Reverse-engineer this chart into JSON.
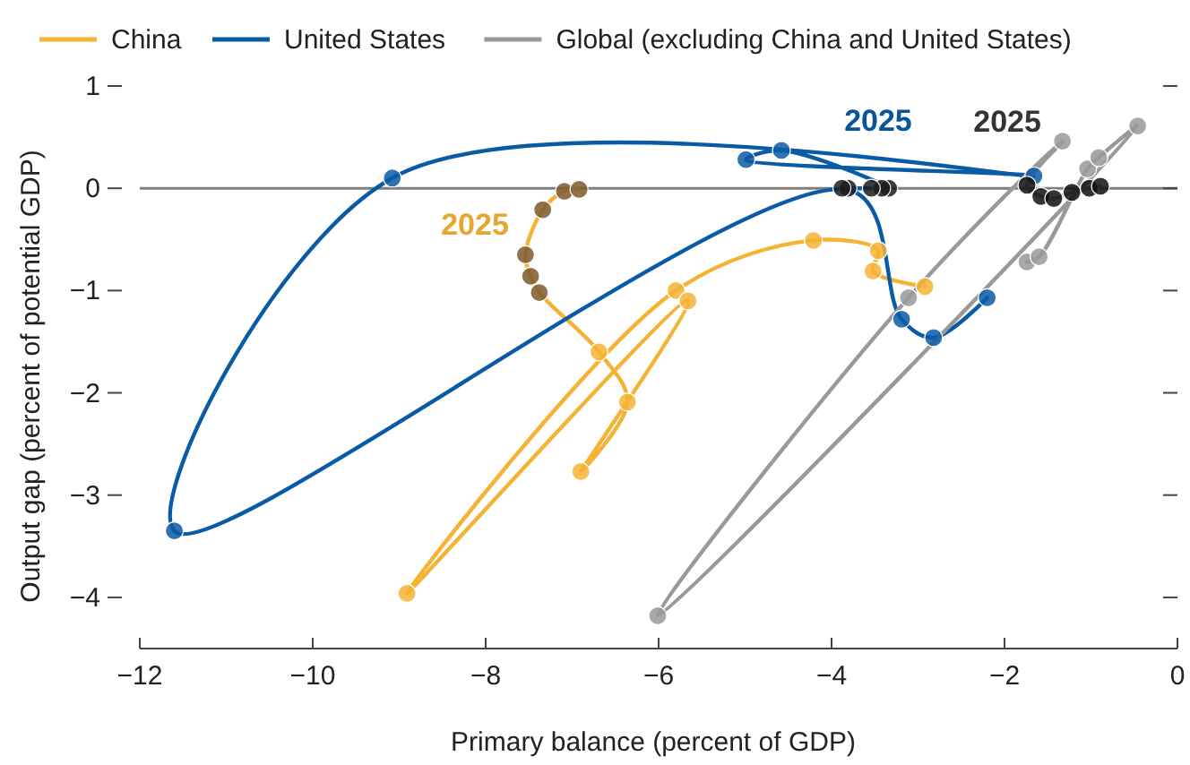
{
  "chart_data": {
    "type": "line",
    "xlabel": "Primary balance (percent of GDP)",
    "ylabel": "Output gap (percent of potential GDP)",
    "xlim": [
      -12,
      0
    ],
    "xticks": [
      -12,
      -10,
      -8,
      -6,
      -4,
      -2,
      0
    ],
    "ylim": [
      -4.5,
      1
    ],
    "yticks": [
      -4,
      -3,
      -2,
      -1,
      0,
      1
    ],
    "grid": false,
    "legend": "top",
    "ref_lines": [
      {
        "axis": "y",
        "value": 0,
        "color": "#7f7f7f"
      }
    ],
    "series": [
      {
        "name": "China",
        "type": "line",
        "marker": "none",
        "color": "#f5b335",
        "x": [
          -2.92,
          -3.52,
          -3.46,
          -4.21,
          -5.8,
          -8.91,
          -5.66,
          -6.9,
          -6.36,
          -6.69,
          -7.38,
          -7.48,
          -7.54,
          -7.34,
          -7.09,
          -6.92
        ],
        "values": [
          -0.96,
          -0.81,
          -0.61,
          -0.51,
          -1.0,
          -3.96,
          -1.1,
          -2.77,
          -2.09,
          -1.6,
          -1.02,
          -0.86,
          -0.65,
          -0.21,
          -0.03,
          -0.01
        ]
      },
      {
        "name": "United States",
        "type": "line",
        "marker": "none",
        "color": "#0a5ba6",
        "x": [
          -2.2,
          -2.82,
          -3.19,
          -3.75,
          -11.6,
          -9.08,
          -1.66,
          -4.99,
          -4.58,
          -3.34,
          -3.42,
          -3.54,
          -3.81,
          -3.88
        ],
        "values": [
          -1.07,
          -1.46,
          -1.28,
          -0.03,
          -3.35,
          0.1,
          0.12,
          0.28,
          0.37,
          0,
          0,
          0,
          0,
          0
        ]
      },
      {
        "name": "Global (excluding China and United States)",
        "type": "line",
        "marker": "none",
        "color": "#999999",
        "x": [
          -1.74,
          -1.6,
          -1.04,
          -0.91,
          -0.46,
          -6.01,
          -3.11,
          -1.33,
          -1.74,
          -1.58,
          -1.43,
          -1.22,
          -1.02,
          -0.89
        ],
        "values": [
          -0.72,
          -0.67,
          0.19,
          0.3,
          0.61,
          -4.18,
          -1.07,
          0.46,
          0.03,
          -0.08,
          -0.1,
          -0.04,
          0,
          0.02
        ]
      },
      {
        "type": "scatter",
        "marker": "circle",
        "color": "#f5b335",
        "x": [
          -2.92,
          -3.52,
          -3.46,
          -4.21,
          -5.8,
          -8.91,
          -5.66,
          -6.9,
          -6.36,
          -6.69
        ],
        "values": [
          -0.96,
          -0.81,
          -0.61,
          -0.51,
          -1.0,
          -3.96,
          -1.1,
          -2.77,
          -2.09,
          -1.6
        ]
      },
      {
        "type": "scatter",
        "marker": "circle",
        "color": "#0a5ba6",
        "x": [
          -2.2,
          -2.82,
          -3.19,
          -11.6,
          -9.08,
          -1.66,
          -4.99,
          -4.58
        ],
        "values": [
          -1.07,
          -1.46,
          -1.28,
          -3.35,
          0.1,
          0.12,
          0.28,
          0.37
        ]
      },
      {
        "type": "scatter",
        "marker": "circle",
        "color": "#999999",
        "x": [
          -1.74,
          -1.6,
          -1.04,
          -0.91,
          -0.46,
          -6.01,
          -3.11,
          -1.33
        ],
        "values": [
          -0.72,
          -0.67,
          0.19,
          0.3,
          0.61,
          -4.18,
          -1.07,
          0.46
        ]
      },
      {
        "type": "scatter",
        "marker": "circle",
        "color": "#7d5a2f",
        "x": [
          -7.38,
          -7.48,
          -7.54,
          -7.34,
          -7.09,
          -6.92
        ],
        "values": [
          -1.02,
          -0.86,
          -0.65,
          -0.21,
          -0.03,
          -0.01
        ]
      },
      {
        "type": "scatter",
        "marker": "circle",
        "color": "#1c1c1c",
        "x": [
          -3.34,
          -3.42,
          -3.54,
          -3.81,
          -3.88
        ],
        "values": [
          0,
          0,
          0,
          0,
          0
        ]
      },
      {
        "type": "scatter",
        "marker": "circle",
        "color": "#111111",
        "x": [
          -1.74,
          -1.58,
          -1.43,
          -1.22,
          -1.02,
          -0.89
        ],
        "values": [
          0.03,
          -0.08,
          -0.1,
          -0.04,
          0,
          0.02
        ]
      }
    ],
    "annotations": [
      "2025",
      {
        "text": "2025",
        "x": -3.42,
        "y": 0
      },
      {
        "text": "2025",
        "x": -1.74,
        "y": 0.03
      }
    ]
  }
}
